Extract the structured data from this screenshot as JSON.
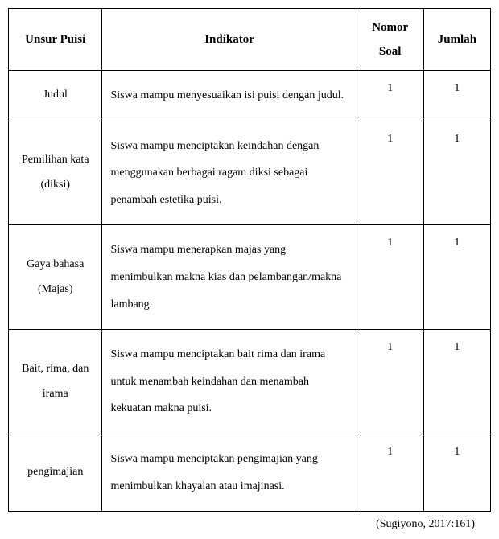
{
  "table": {
    "headers": {
      "unsur": "Unsur Puisi",
      "indikator": "Indikator",
      "nomor_line1": "Nomor",
      "nomor_line2": "Soal",
      "jumlah": "Jumlah"
    },
    "rows": [
      {
        "unsur": "Judul",
        "indikator": "Siswa mampu menyesuaikan isi puisi dengan judul.",
        "nomor": "1",
        "jumlah": "1"
      },
      {
        "unsur": "Pemilihan kata (diksi)",
        "indikator": "Siswa mampu menciptakan keindahan dengan menggunakan berbagai ragam diksi sebagai penambah estetika puisi.",
        "nomor": "1",
        "jumlah": "1"
      },
      {
        "unsur": "Gaya bahasa (Majas)",
        "indikator": "Siswa mampu menerapkan majas yang menimbulkan makna kias dan pelambangan/makna lambang.",
        "nomor": "1",
        "jumlah": "1"
      },
      {
        "unsur": "Bait, rima, dan irama",
        "indikator": "Siswa mampu menciptakan bait rima dan irama untuk menambah keindahan dan menambah kekuatan makna puisi.",
        "nomor": "1",
        "jumlah": "1"
      },
      {
        "unsur": "pengimajian",
        "indikator": "Siswa mampu menciptakan pengimajian yang menimbulkan khayalan atau imajinasi.",
        "nomor": "1",
        "jumlah": "1"
      }
    ]
  },
  "citation": "(Sugiyono, 2017:161)",
  "styling": {
    "font_family": "Times New Roman",
    "border_color": "#000000",
    "background_color": "#ffffff",
    "header_fontsize": 15,
    "body_fontsize": 14,
    "line_height_body": 2.4,
    "column_widths": {
      "unsur": 105,
      "indikator": 285,
      "nomor": 75,
      "jumlah": 75
    }
  }
}
